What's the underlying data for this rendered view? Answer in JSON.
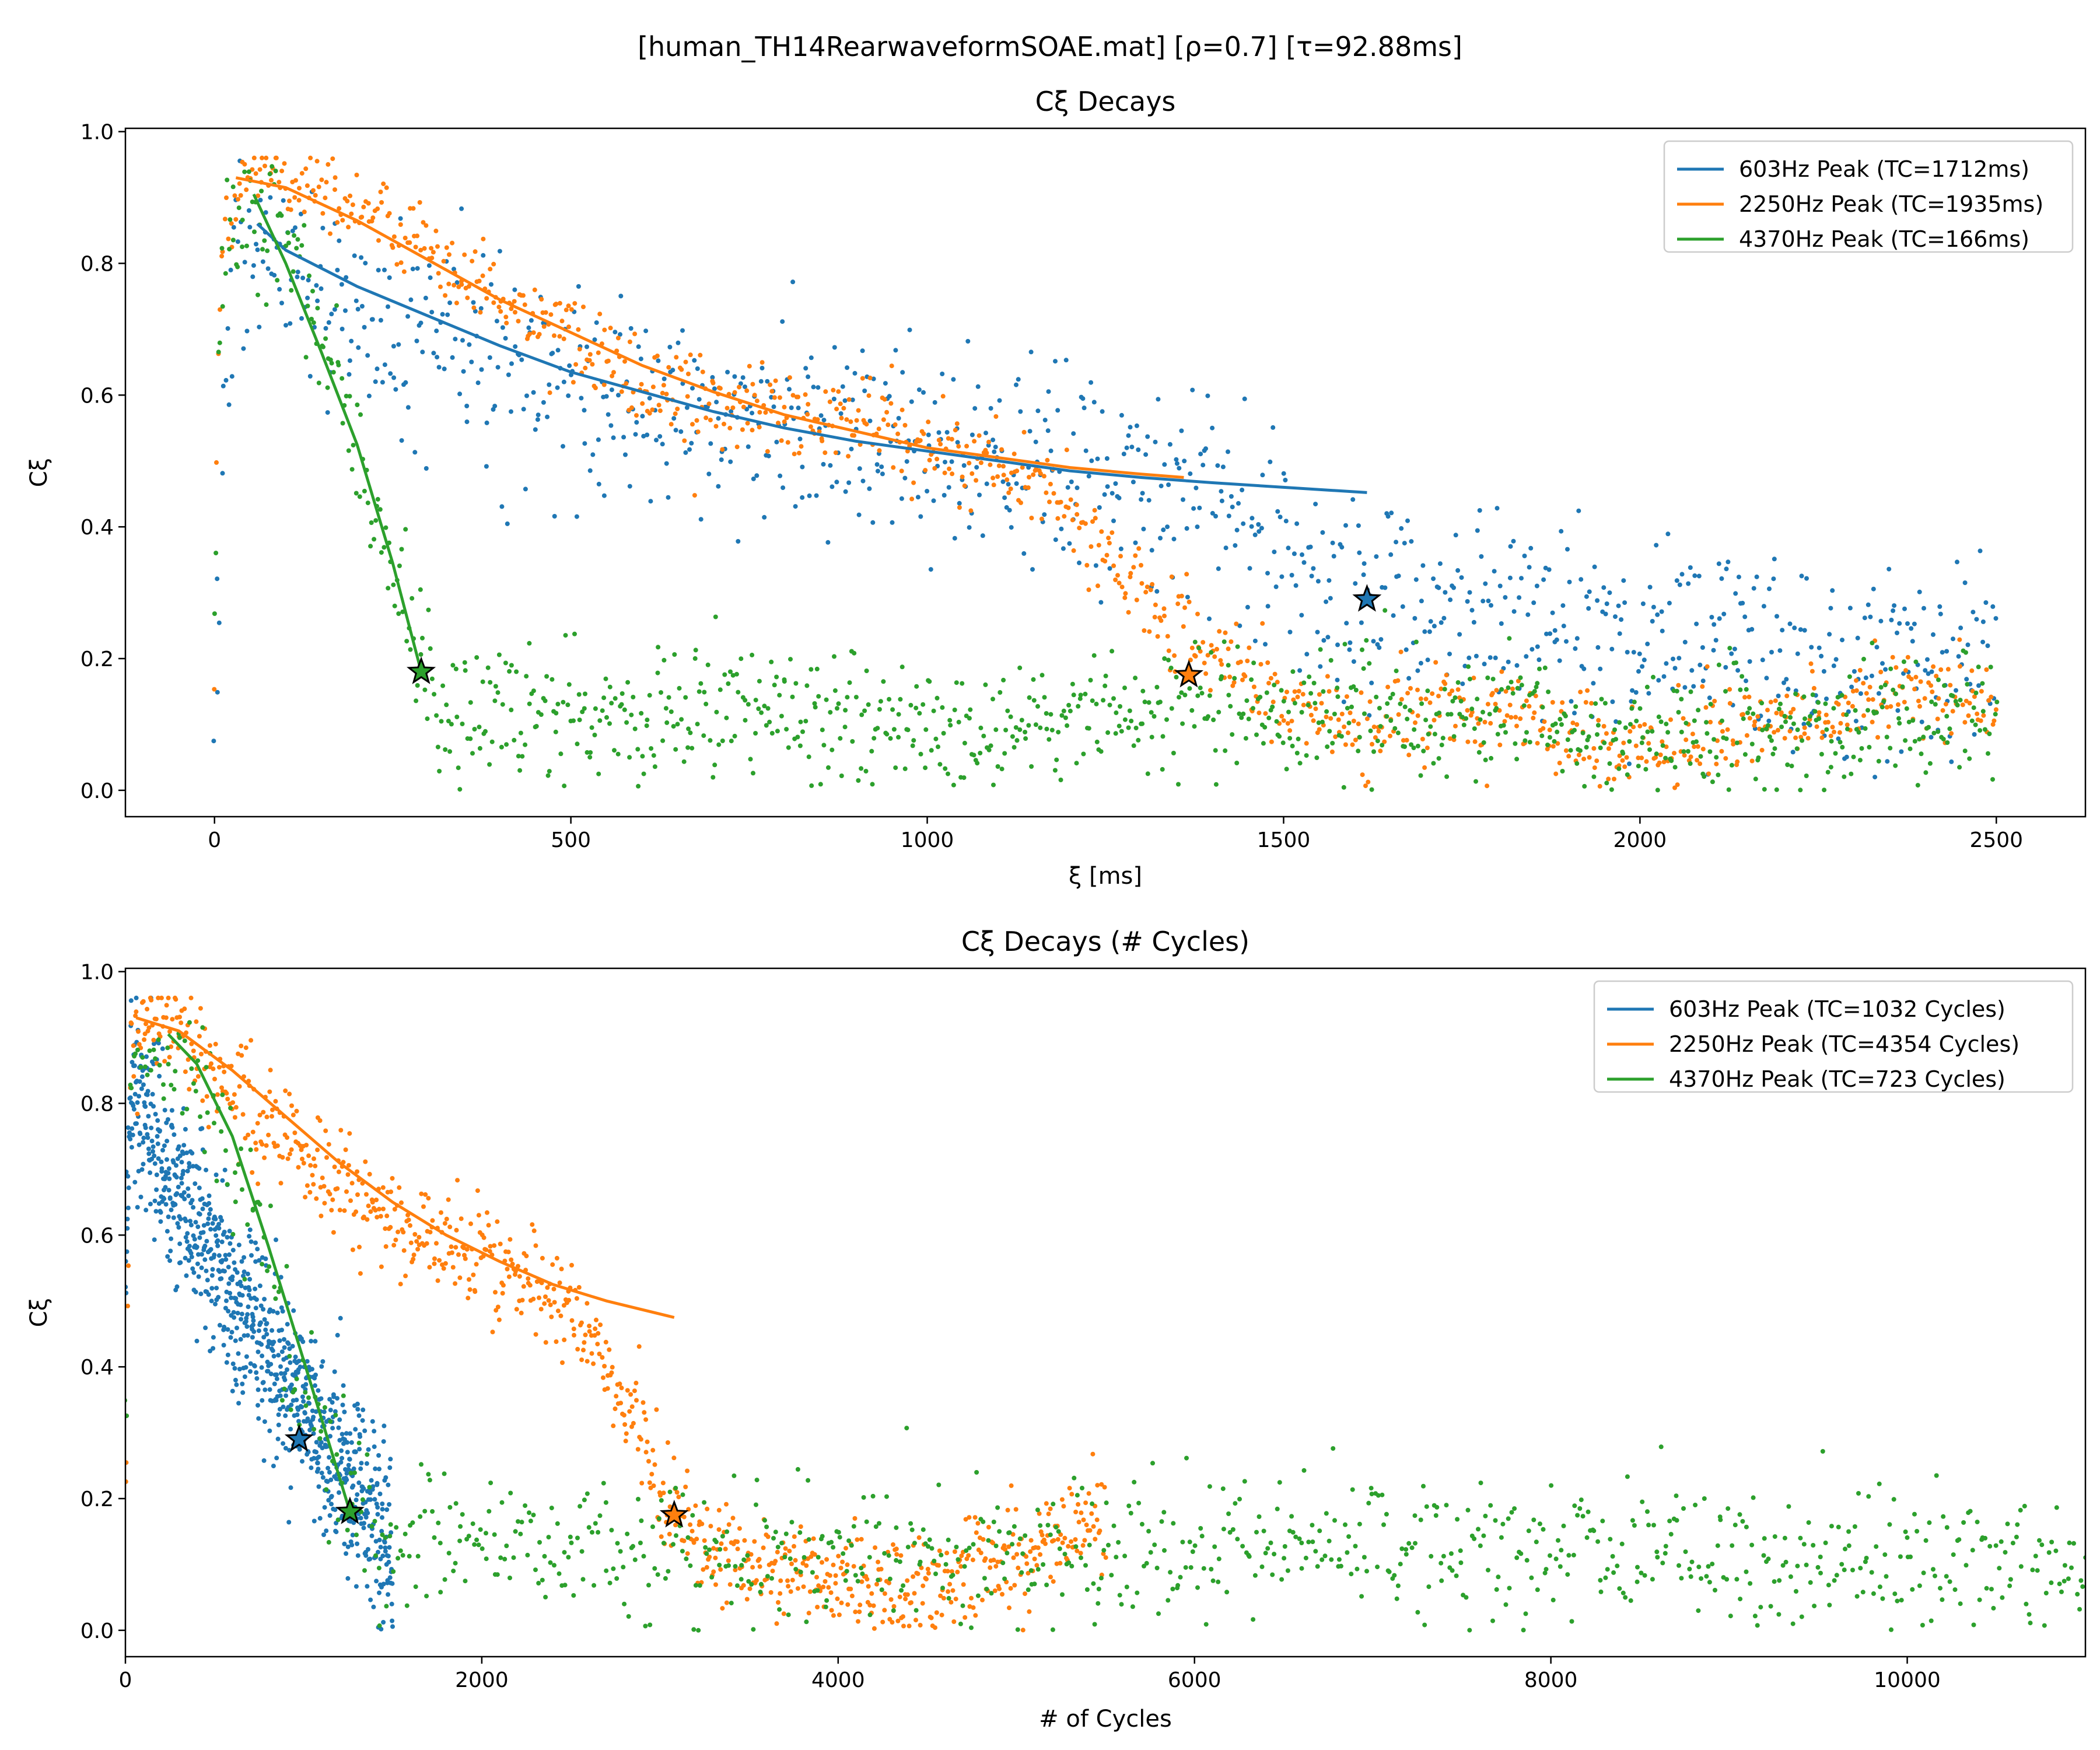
{
  "figure": {
    "suptitle": "[human_TH14RearwaveformSOAE.mat]   [ρ=0.7]   [τ=92.88ms]"
  },
  "chart_data": [
    {
      "type": "scatter",
      "title": "Cξ Decays",
      "xlabel": "ξ [ms]",
      "ylabel": "Cξ",
      "xlim": [
        -125,
        2625
      ],
      "ylim": [
        -0.04,
        1.005
      ],
      "xticks": [
        0,
        500,
        1000,
        1500,
        2000,
        2500
      ],
      "yticks": [
        0.0,
        0.2,
        0.4,
        0.6,
        0.8,
        1.0
      ],
      "grid": false,
      "legend_position": "top-right",
      "legend": [
        "603Hz Peak (TC=1712ms)",
        "2250Hz Peak (TC=1935ms)",
        "4370Hz Peak (TC=166ms)"
      ],
      "series": [
        {
          "color": "#1f77b4",
          "scatter_trend": [
            [
              0,
              0.02
            ],
            [
              8,
              0.35
            ],
            [
              15,
              0.65
            ],
            [
              25,
              0.78
            ],
            [
              40,
              0.82
            ],
            [
              80,
              0.8
            ],
            [
              150,
              0.76
            ],
            [
              250,
              0.7
            ],
            [
              400,
              0.64
            ],
            [
              600,
              0.58
            ],
            [
              800,
              0.55
            ],
            [
              1000,
              0.52
            ],
            [
              1200,
              0.48
            ],
            [
              1400,
              0.44
            ],
            [
              1500,
              0.38
            ],
            [
              1550,
              0.32
            ],
            [
              1620,
              0.29
            ],
            [
              1800,
              0.27
            ],
            [
              2000,
              0.24
            ],
            [
              2200,
              0.22
            ],
            [
              2400,
              0.2
            ],
            [
              2500,
              0.18
            ]
          ],
          "scatter_spread": 0.08,
          "fit_line": [
            [
              60,
              0.86
            ],
            [
              100,
              0.82
            ],
            [
              200,
              0.765
            ],
            [
              300,
              0.72
            ],
            [
              400,
              0.675
            ],
            [
              500,
              0.635
            ],
            [
              600,
              0.605
            ],
            [
              700,
              0.575
            ],
            [
              800,
              0.55
            ],
            [
              900,
              0.53
            ],
            [
              1000,
              0.515
            ],
            [
              1100,
              0.5
            ],
            [
              1200,
              0.485
            ],
            [
              1300,
              0.475
            ],
            [
              1400,
              0.467
            ],
            [
              1500,
              0.46
            ],
            [
              1617,
              0.452
            ]
          ],
          "marker": [
            1617,
            0.29
          ]
        },
        {
          "color": "#ff7f0e",
          "scatter_trend": [
            [
              0,
              0.17
            ],
            [
              5,
              0.7
            ],
            [
              15,
              0.88
            ],
            [
              40,
              0.93
            ],
            [
              100,
              0.93
            ],
            [
              150,
              0.92
            ],
            [
              200,
              0.88
            ],
            [
              300,
              0.82
            ],
            [
              400,
              0.74
            ],
            [
              500,
              0.68
            ],
            [
              600,
              0.62
            ],
            [
              700,
              0.58
            ],
            [
              800,
              0.56
            ],
            [
              900,
              0.56
            ],
            [
              1000,
              0.52
            ],
            [
              1100,
              0.5
            ],
            [
              1200,
              0.42
            ],
            [
              1250,
              0.36
            ],
            [
              1300,
              0.3
            ],
            [
              1400,
              0.2
            ],
            [
              1500,
              0.12
            ],
            [
              1600,
              0.1
            ],
            [
              1700,
              0.12
            ],
            [
              1800,
              0.13
            ],
            [
              1900,
              0.08
            ],
            [
              2000,
              0.05
            ],
            [
              2100,
              0.08
            ],
            [
              2200,
              0.12
            ],
            [
              2300,
              0.13
            ],
            [
              2400,
              0.16
            ],
            [
              2500,
              0.14
            ]
          ],
          "scatter_spread": 0.035,
          "fit_line": [
            [
              30,
              0.93
            ],
            [
              100,
              0.915
            ],
            [
              200,
              0.865
            ],
            [
              300,
              0.805
            ],
            [
              400,
              0.745
            ],
            [
              500,
              0.695
            ],
            [
              600,
              0.645
            ],
            [
              700,
              0.605
            ],
            [
              800,
              0.57
            ],
            [
              900,
              0.545
            ],
            [
              1000,
              0.52
            ],
            [
              1100,
              0.505
            ],
            [
              1200,
              0.49
            ],
            [
              1300,
              0.48
            ],
            [
              1360,
              0.475
            ]
          ],
          "marker": [
            1367,
            0.175
          ]
        },
        {
          "color": "#2ca02c",
          "scatter_trend": [
            [
              0,
              0.25
            ],
            [
              8,
              0.8
            ],
            [
              20,
              0.87
            ],
            [
              60,
              0.87
            ],
            [
              100,
              0.83
            ],
            [
              150,
              0.7
            ],
            [
              200,
              0.5
            ],
            [
              250,
              0.35
            ],
            [
              290,
              0.2
            ],
            [
              320,
              0.12
            ],
            [
              400,
              0.12
            ],
            [
              600,
              0.12
            ],
            [
              800,
              0.12
            ],
            [
              1000,
              0.1
            ],
            [
              1200,
              0.11
            ],
            [
              1400,
              0.12
            ],
            [
              1600,
              0.12
            ],
            [
              1800,
              0.11
            ],
            [
              2000,
              0.09
            ],
            [
              2200,
              0.1
            ],
            [
              2400,
              0.12
            ],
            [
              2500,
              0.11
            ]
          ],
          "scatter_spread": 0.05,
          "fit_line": [
            [
              55,
              0.905
            ],
            [
              100,
              0.8
            ],
            [
              150,
              0.665
            ],
            [
              200,
              0.525
            ],
            [
              250,
              0.345
            ],
            [
              290,
              0.18
            ]
          ],
          "marker": [
            290,
            0.18
          ]
        }
      ]
    },
    {
      "type": "scatter",
      "title": "Cξ Decays (# Cycles)",
      "xlabel": "# of Cycles",
      "ylabel": "Cξ",
      "xlim": [
        0,
        11000
      ],
      "ylim": [
        -0.04,
        1.005
      ],
      "xticks": [
        0,
        2000,
        4000,
        6000,
        8000,
        10000
      ],
      "yticks": [
        0.0,
        0.2,
        0.4,
        0.6,
        0.8,
        1.0
      ],
      "grid": false,
      "legend_position": "top-right",
      "legend": [
        "603Hz Peak (TC=1032 Cycles)",
        "2250Hz Peak (TC=4354 Cycles)",
        "4370Hz Peak (TC=723 Cycles)"
      ],
      "series": [
        {
          "color": "#1f77b4",
          "scatter_trend": [
            [
              0,
              0.6
            ],
            [
              30,
              0.82
            ],
            [
              100,
              0.8
            ],
            [
              200,
              0.72
            ],
            [
              400,
              0.62
            ],
            [
              600,
              0.52
            ],
            [
              800,
              0.42
            ],
            [
              975,
              0.34
            ],
            [
              1200,
              0.25
            ],
            [
              1400,
              0.18
            ],
            [
              1500,
              0.1
            ]
          ],
          "scatter_spread": 0.07,
          "fit_line": [],
          "marker": [
            975,
            0.29
          ]
        },
        {
          "color": "#ff7f0e",
          "scatter_trend": [
            [
              0,
              0.17
            ],
            [
              30,
              0.88
            ],
            [
              100,
              0.93
            ],
            [
              300,
              0.92
            ],
            [
              500,
              0.84
            ],
            [
              800,
              0.76
            ],
            [
              1000,
              0.72
            ],
            [
              1200,
              0.68
            ],
            [
              1500,
              0.62
            ],
            [
              1800,
              0.58
            ],
            [
              2000,
              0.56
            ],
            [
              2200,
              0.53
            ],
            [
              2500,
              0.48
            ],
            [
              2700,
              0.4
            ],
            [
              2900,
              0.3
            ],
            [
              3000,
              0.22
            ],
            [
              3100,
              0.18
            ],
            [
              3300,
              0.12
            ],
            [
              3600,
              0.1
            ],
            [
              4000,
              0.08
            ],
            [
              4400,
              0.06
            ],
            [
              4700,
              0.08
            ],
            [
              5000,
              0.12
            ],
            [
              5300,
              0.14
            ],
            [
              5500,
              0.18
            ]
          ],
          "scatter_spread": 0.04,
          "fit_line": [
            [
              60,
              0.93
            ],
            [
              300,
              0.91
            ],
            [
              600,
              0.85
            ],
            [
              900,
              0.78
            ],
            [
              1200,
              0.71
            ],
            [
              1500,
              0.65
            ],
            [
              1800,
              0.6
            ],
            [
              2100,
              0.56
            ],
            [
              2400,
              0.525
            ],
            [
              2700,
              0.5
            ],
            [
              3080,
              0.475
            ]
          ],
          "marker": [
            3080,
            0.175
          ]
        },
        {
          "color": "#2ca02c",
          "scatter_trend": [
            [
              0,
              0.3
            ],
            [
              30,
              0.82
            ],
            [
              100,
              0.87
            ],
            [
              300,
              0.87
            ],
            [
              500,
              0.8
            ],
            [
              700,
              0.65
            ],
            [
              900,
              0.45
            ],
            [
              1100,
              0.3
            ],
            [
              1260,
              0.2
            ],
            [
              1400,
              0.14
            ],
            [
              2000,
              0.13
            ],
            [
              3000,
              0.12
            ],
            [
              4000,
              0.11
            ],
            [
              5000,
              0.12
            ],
            [
              6000,
              0.12
            ],
            [
              7000,
              0.13
            ],
            [
              8000,
              0.12
            ],
            [
              9000,
              0.12
            ],
            [
              10000,
              0.11
            ],
            [
              11000,
              0.12
            ]
          ],
          "scatter_spread": 0.055,
          "fit_line": [
            [
              240,
              0.905
            ],
            [
              400,
              0.86
            ],
            [
              600,
              0.75
            ],
            [
              800,
              0.585
            ],
            [
              1000,
              0.41
            ],
            [
              1260,
              0.18
            ]
          ],
          "marker": [
            1260,
            0.18
          ]
        }
      ]
    }
  ]
}
